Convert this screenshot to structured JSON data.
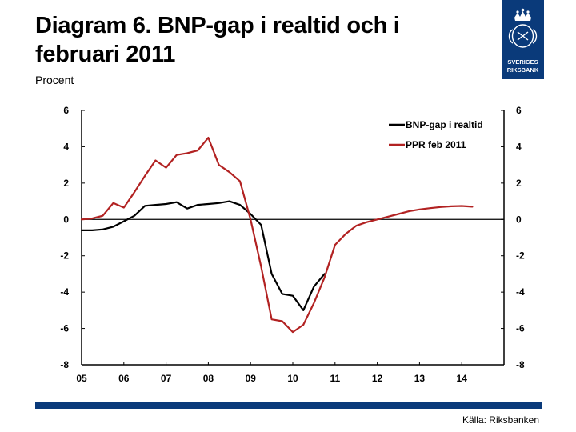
{
  "header": {
    "title": "Diagram 6. BNP-gap i realtid och i februari 2011",
    "subtitle": "Procent"
  },
  "logo": {
    "line1": "SVERIGES",
    "line2": "RIKSBANK"
  },
  "footer": {
    "source": "Källa: Riksbanken"
  },
  "colors": {
    "series1": "#000000",
    "series2": "#b22222",
    "brand": "#0a3a7a"
  },
  "chart_data": {
    "type": "line",
    "title": "Diagram 6. BNP-gap i realtid och i februari 2011",
    "ylabel": "Procent",
    "xlabel": "",
    "ylim": [
      -8,
      6
    ],
    "xlim": [
      2005.0,
      2015.0
    ],
    "yticks": [
      6,
      4,
      2,
      0,
      -2,
      -4,
      -6,
      -8
    ],
    "xticks": [
      {
        "label": "05",
        "value": 2005.0
      },
      {
        "label": "06",
        "value": 2006.0
      },
      {
        "label": "07",
        "value": 2007.0
      },
      {
        "label": "08",
        "value": 2008.0
      },
      {
        "label": "09",
        "value": 2009.0
      },
      {
        "label": "10",
        "value": 2010.0
      },
      {
        "label": "11",
        "value": 2011.0
      },
      {
        "label": "12",
        "value": 2012.0
      },
      {
        "label": "13",
        "value": 2013.0
      },
      {
        "label": "14",
        "value": 2014.0
      }
    ],
    "legend_position": "top-right",
    "series": [
      {
        "name": "BNP-gap i realtid",
        "color": "#000000",
        "x": [
          2005.0,
          2005.25,
          2005.5,
          2005.75,
          2006.0,
          2006.25,
          2006.5,
          2006.75,
          2007.0,
          2007.25,
          2007.5,
          2007.75,
          2008.0,
          2008.25,
          2008.5,
          2008.75,
          2009.0,
          2009.25,
          2009.5,
          2009.75,
          2010.0,
          2010.25,
          2010.5,
          2010.75
        ],
        "values": [
          -0.6,
          -0.6,
          -0.55,
          -0.4,
          -0.1,
          0.2,
          0.75,
          0.8,
          0.85,
          0.95,
          0.6,
          0.8,
          0.85,
          0.9,
          1.0,
          0.8,
          0.3,
          -0.3,
          -3.0,
          -4.1,
          -4.2,
          -5.0,
          -3.7,
          -3.0
        ]
      },
      {
        "name": "PPR feb 2011",
        "color": "#b22222",
        "x": [
          2005.0,
          2005.25,
          2005.5,
          2005.75,
          2006.0,
          2006.25,
          2006.5,
          2006.75,
          2007.0,
          2007.25,
          2007.5,
          2007.75,
          2008.0,
          2008.25,
          2008.5,
          2008.75,
          2009.0,
          2009.25,
          2009.5,
          2009.75,
          2010.0,
          2010.25,
          2010.5,
          2010.75,
          2011.0,
          2011.25,
          2011.5,
          2011.75,
          2012.0,
          2012.25,
          2012.5,
          2012.75,
          2013.0,
          2013.25,
          2013.5,
          2013.75,
          2014.0,
          2014.25
        ],
        "values": [
          0.0,
          0.05,
          0.2,
          0.9,
          0.65,
          1.5,
          2.4,
          3.25,
          2.85,
          3.55,
          3.65,
          3.8,
          4.5,
          3.0,
          2.6,
          2.1,
          0.0,
          -2.6,
          -5.5,
          -5.6,
          -6.2,
          -5.8,
          -4.6,
          -3.2,
          -1.4,
          -0.8,
          -0.35,
          -0.15,
          0.0,
          0.15,
          0.3,
          0.45,
          0.55,
          0.62,
          0.68,
          0.72,
          0.74,
          0.7
        ]
      }
    ]
  }
}
